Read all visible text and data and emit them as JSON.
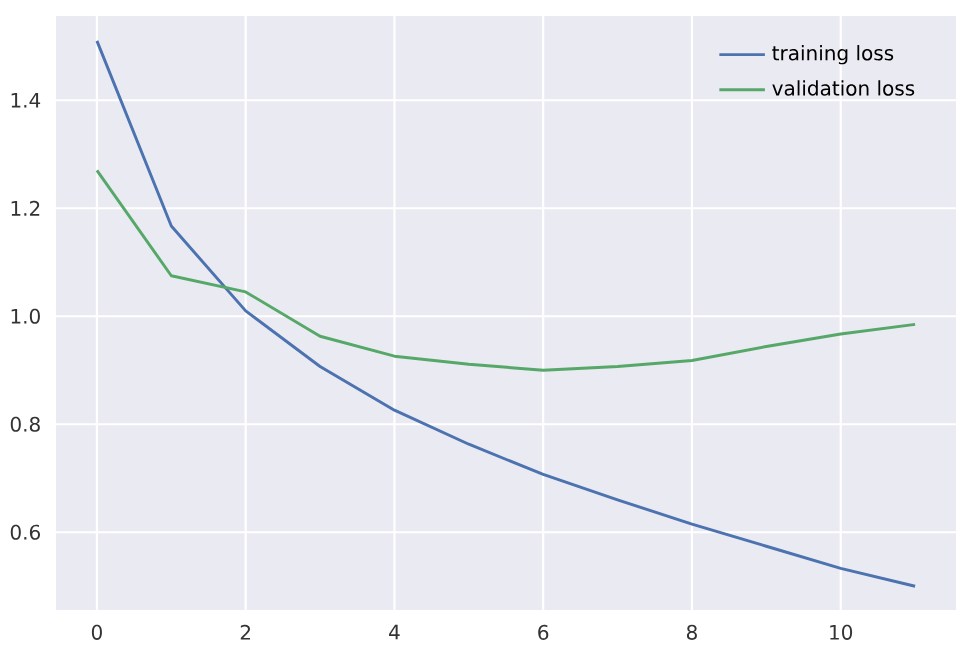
{
  "chart_data": {
    "type": "line",
    "x": [
      0,
      1,
      2,
      3,
      4,
      5,
      6,
      7,
      8,
      9,
      10,
      11
    ],
    "series": [
      {
        "name": "training loss",
        "color": "#4c72b0",
        "values": [
          1.51,
          1.167,
          1.01,
          0.907,
          0.826,
          0.763,
          0.707,
          0.66,
          0.615,
          0.574,
          0.533,
          0.5
        ]
      },
      {
        "name": "validation loss",
        "color": "#55a868",
        "values": [
          1.27,
          1.075,
          1.045,
          0.963,
          0.926,
          0.911,
          0.9,
          0.907,
          0.918,
          0.944,
          0.967,
          0.985
        ]
      }
    ],
    "xlim": [
      -0.55,
      11.55
    ],
    "ylim": [
      0.456,
      1.556
    ],
    "xticks": [
      0,
      2,
      4,
      6,
      8,
      10
    ],
    "yticks": [
      0.6,
      0.8,
      {
        "value": 1.0,
        "label": "1.0"
      },
      1.2,
      1.4
    ],
    "grid": true,
    "legend": "top right",
    "marker": "none",
    "line_style": "solid"
  }
}
